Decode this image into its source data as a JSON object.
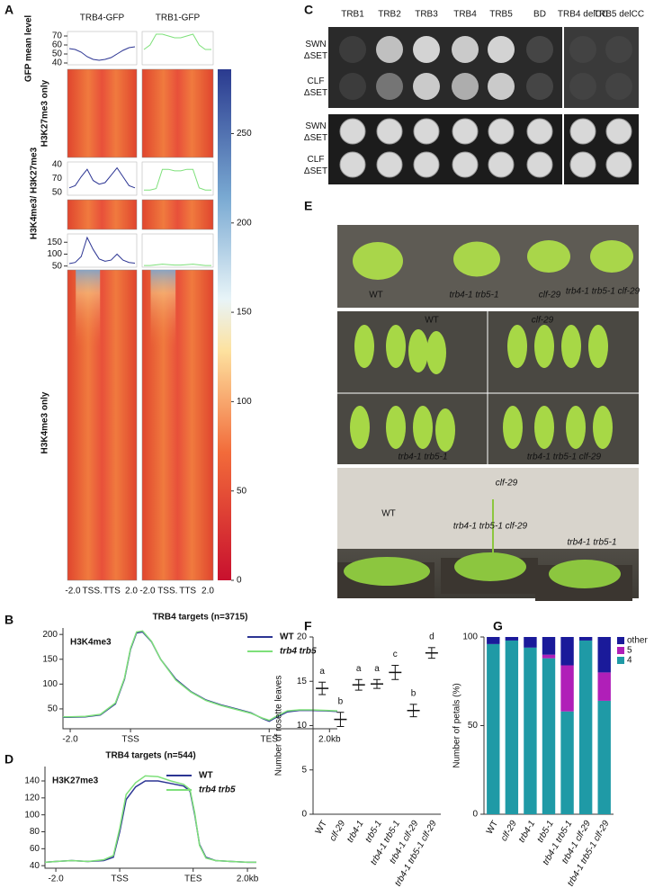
{
  "panel_labels": [
    "A",
    "B",
    "C",
    "D",
    "E",
    "F",
    "G"
  ],
  "chart_data": [
    {
      "type": "heatmap",
      "columns": [
        "TRB4-GFP",
        "TRB1-GFP"
      ],
      "row_labels": [
        "GFP mean level",
        "H3K27me3 only",
        "H3K4me3/ H3K27me3",
        "H3K4me3 only"
      ],
      "x_labels": [
        "-2.0",
        "TSS.",
        "TTS",
        "2.0"
      ],
      "colorbar_lim": [
        0,
        286
      ],
      "colorbar_ticks": [
        0,
        50,
        100,
        150,
        200,
        250
      ],
      "profiles": [
        {
          "ylim": [
            38,
            75
          ],
          "yticks": [
            40,
            50,
            60,
            70
          ],
          "series": [
            {
              "color": "#2c3593",
              "values": [
                56,
                55,
                52,
                47,
                44,
                43,
                44,
                46,
                50,
                54,
                57,
                58
              ]
            },
            {
              "color": "#7ee07a",
              "values": [
                55,
                60,
                72,
                72,
                70,
                68,
                68,
                70,
                72,
                60,
                55,
                55
              ]
            }
          ]
        },
        {
          "ylim": [
            35,
            80
          ],
          "tick_texts": [
            "40",
            "70",
            "50"
          ],
          "series": [
            {
              "color": "#2c3593",
              "values": [
                45,
                48,
                60,
                70,
                55,
                50,
                52,
                62,
                72,
                60,
                48,
                45
              ]
            },
            {
              "color": "#7ee07a",
              "values": [
                42,
                42,
                44,
                70,
                70,
                68,
                68,
                70,
                70,
                45,
                42,
                42
              ]
            }
          ]
        },
        {
          "ylim": [
            45,
            185
          ],
          "yticks": [
            50,
            100,
            150
          ],
          "series": [
            {
              "color": "#2c3593",
              "values": [
                60,
                65,
                90,
                170,
                120,
                80,
                70,
                75,
                100,
                75,
                65,
                62
              ]
            },
            {
              "color": "#7ee07a",
              "values": [
                52,
                52,
                55,
                58,
                56,
                54,
                54,
                56,
                58,
                55,
                52,
                52
              ]
            }
          ]
        }
      ]
    },
    {
      "type": "line",
      "title": "TRB4 targets (n=3715)",
      "inner_label": "H3K4me3",
      "legend": "upper right",
      "x": [
        -2.24,
        -2,
        -1.5,
        -1,
        -0.5,
        -0.2,
        0,
        0.2,
        0.4,
        0.7,
        1,
        1.5,
        2,
        2.5,
        3,
        3.5,
        4,
        4.4,
        4.6,
        4.8,
        5.2,
        5.6,
        6,
        6.5,
        6.86
      ],
      "xlim": [
        -2.24,
        6.86
      ],
      "xticks": [
        {
          "value": -2,
          "label": "-2.0"
        },
        {
          "value": 0,
          "label": "TSS"
        },
        {
          "value": 4.6,
          "label": "TES"
        },
        {
          "value": 6.6,
          "label": "2.0kb"
        }
      ],
      "ylim": [
        10,
        213
      ],
      "yticks": [
        50,
        100,
        150,
        200
      ],
      "series": [
        {
          "name": "WT",
          "color": "#2c3593",
          "values": [
            33,
            33,
            34,
            38,
            60,
            110,
            170,
            203,
            205,
            185,
            150,
            110,
            85,
            68,
            58,
            50,
            42,
            30,
            25,
            32,
            44,
            47,
            47,
            46,
            45
          ]
        },
        {
          "name": "trb4 trb5",
          "color": "#7ee07a",
          "values": [
            34,
            34,
            35,
            39,
            62,
            112,
            172,
            205,
            207,
            186,
            150,
            108,
            84,
            67,
            57,
            49,
            41,
            31,
            27,
            34,
            46,
            48,
            48,
            47,
            46
          ]
        }
      ]
    },
    {
      "type": "line",
      "title": "TRB4 targets (n=544)",
      "inner_label": "H3K27me3",
      "legend": "upper right",
      "x": [
        -2.34,
        -2,
        -1.5,
        -1,
        -0.5,
        -0.2,
        0,
        0.2,
        0.5,
        0.8,
        1.2,
        1.6,
        2.0,
        2.2,
        2.35,
        2.5,
        2.7,
        3,
        3.5,
        4,
        4.28
      ],
      "xlim": [
        -2.34,
        4.28
      ],
      "xticks": [
        {
          "value": -2,
          "label": "-2.0"
        },
        {
          "value": 0,
          "label": "TSS"
        },
        {
          "value": 2.3,
          "label": "TES"
        },
        {
          "value": 4.0,
          "label": "2.0kb"
        }
      ],
      "ylim": [
        37,
        157
      ],
      "yticks": [
        40,
        60,
        80,
        100,
        120,
        140
      ],
      "series": [
        {
          "name": "WT",
          "color": "#2c3593",
          "values": [
            44,
            45,
            46,
            45,
            46,
            50,
            80,
            118,
            133,
            140,
            140,
            137,
            134,
            128,
            100,
            65,
            50,
            46,
            45,
            44,
            44
          ]
        },
        {
          "name": "trb4 trb5",
          "color": "#7ee07a",
          "values": [
            44,
            45,
            46,
            45,
            47,
            52,
            84,
            124,
            138,
            146,
            145,
            140,
            136,
            130,
            102,
            64,
            49,
            46,
            45,
            44,
            44
          ]
        }
      ]
    },
    {
      "type": "errorbar",
      "y_label": "Number of rosette leaves",
      "categories": [
        "WT",
        "clf-29",
        "trb4-1",
        "trb5-1",
        "trb4-1 trb5-1",
        "trb4-1 clf-29",
        "trb4-1 trb5-1 clf-29"
      ],
      "values": [
        14.2,
        10.7,
        14.6,
        14.7,
        16.0,
        11.7,
        18.2
      ],
      "errors": [
        0.7,
        0.8,
        0.6,
        0.5,
        0.8,
        0.7,
        0.6
      ],
      "letters": [
        "a",
        "b",
        "a",
        "a",
        "c",
        "b",
        "d"
      ],
      "ylim": [
        0,
        20
      ],
      "yticks": [
        0,
        5,
        10,
        15,
        20
      ]
    },
    {
      "type": "stacked-bar",
      "y_label": "Number of petals (%)",
      "legend": "upper right",
      "categories": [
        "WT",
        "clf-29",
        "trb4-1",
        "trb5-1",
        "trb4-1 trb5-1",
        "trb4-1 clf-29",
        "trb4-1 trb5-1 clf-29"
      ],
      "ylim": [
        0,
        100
      ],
      "yticks": [
        0,
        50,
        100
      ],
      "series": [
        {
          "name": "4",
          "color": "#1f9aa6",
          "values": [
            96,
            98,
            94,
            88,
            58,
            98,
            64
          ]
        },
        {
          "name": "5",
          "color": "#b01fb8",
          "values": [
            0,
            0,
            0,
            2,
            26,
            0,
            16
          ]
        },
        {
          "name": "other",
          "color": "#1a1a9a",
          "values": [
            4,
            2,
            6,
            10,
            16,
            2,
            20
          ]
        }
      ]
    }
  ],
  "yeast": {
    "columns": [
      "TRB1",
      "TRB2",
      "TRB3",
      "TRB4",
      "TRB5",
      "BD",
      "TRB4 delCC",
      "TRB5 delCC"
    ],
    "rows": [
      "SWN ΔSET",
      "CLF ΔSET",
      "SWN ΔSET",
      "CLF ΔSET"
    ]
  },
  "photos": {
    "overview": [
      "WT",
      "trb4-1 trb5-1",
      "clf-29",
      "trb4-1 trb5-1 clf-29"
    ],
    "leaves": [
      "WT",
      "clf-29",
      "trb4-1 trb5-1",
      "trb4-1 trb5-1 clf-29"
    ],
    "plants": [
      "clf-29",
      "WT",
      "trb4-1 trb5-1 clf-29",
      "trb4-1 trb5-1"
    ]
  }
}
